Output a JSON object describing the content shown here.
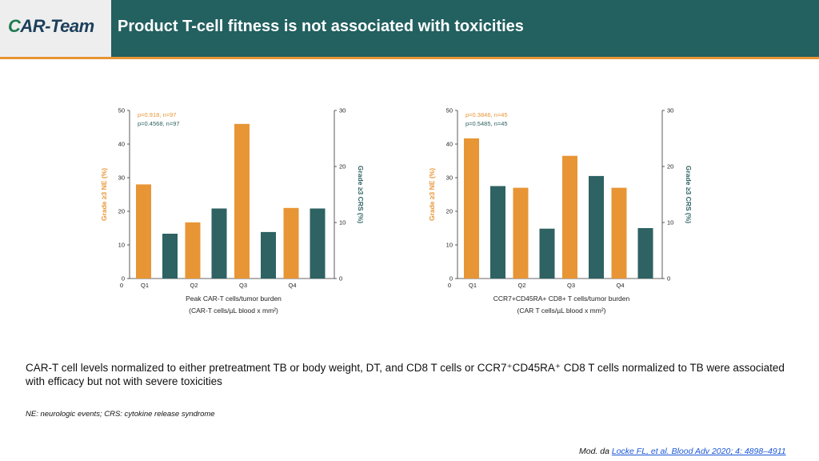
{
  "header": {
    "logo_text_c": "C",
    "logo_text_rest": "AR-Team",
    "title": "Product T-cell fitness is not associated with toxicities",
    "colors": {
      "bar": "#236060",
      "accent": "#e89535"
    }
  },
  "chart_data": [
    {
      "type": "bar",
      "categories": [
        "Q1",
        "Q2",
        "Q3",
        "Q4"
      ],
      "series": [
        {
          "name": "Grade ≥3 NE (%)",
          "axis": "left",
          "color": "#e89535",
          "values": [
            28,
            16.7,
            46,
            21
          ]
        },
        {
          "name": "Grade ≥3 CRS (%)",
          "axis": "right",
          "color": "#2f6262",
          "values": [
            8,
            12.5,
            8.3,
            12.5
          ]
        }
      ],
      "annotations": [
        "p=0.918, n=97",
        "p=0.4568, n=97"
      ],
      "xlabel": [
        "Peak CAR-T cells/tumor burden",
        "(CAR-T cells/µL blood x mm²)"
      ],
      "ylabel_left": "Grade ≥3 NE (%)",
      "ylabel_right": "Grade ≥3 CRS (%)",
      "ylim_left": [
        0,
        50
      ],
      "ylim_right": [
        0,
        30
      ],
      "yticks_left": [
        "0",
        "10",
        "20",
        "30",
        "40",
        "50"
      ],
      "yticks_right": [
        "0",
        "10",
        "20",
        "30"
      ],
      "grid": false,
      "legend": "none"
    },
    {
      "type": "bar",
      "categories": [
        "Q1",
        "Q2",
        "Q3",
        "Q4"
      ],
      "series": [
        {
          "name": "Grade ≥3 NE (%)",
          "axis": "left",
          "color": "#e89535",
          "values": [
            41.7,
            27,
            36.5,
            27
          ]
        },
        {
          "name": "Grade ≥3 CRS (%)",
          "axis": "right",
          "color": "#2f6262",
          "values": [
            16.5,
            8.9,
            18.3,
            9
          ]
        }
      ],
      "annotations": [
        "p=0.3846, n=45",
        "p=0.5485, n=45"
      ],
      "xlabel": [
        "CCR7+CD45RA+ CD8+ T cells/tumor burden",
        "(CAR T cells/µL blood x mm²)"
      ],
      "ylabel_left": "Grade ≥3 NE (%)",
      "ylabel_right": "Grade ≥3 CRS (%)",
      "ylim_left": [
        0,
        50
      ],
      "ylim_right": [
        0,
        30
      ],
      "yticks_left": [
        "0",
        "10",
        "20",
        "30",
        "40",
        "50"
      ],
      "yticks_right": [
        "0",
        "10",
        "20",
        "30"
      ],
      "grid": false,
      "legend": "none"
    }
  ],
  "summary": "CAR-T cell levels normalized to either pretreatment TB or body weight, DT, and CD8 T cells or CCR7⁺CD45RA⁺ CD8 T cells normalized to TB were associated with efficacy but not with severe toxicities",
  "footnote": "NE: neurologic events; CRS: cytokine release syndrome",
  "source": {
    "prefix": "Mod. da ",
    "link": "Locke FL, et al. Blood Adv 2020; 4: 4898–4911"
  }
}
